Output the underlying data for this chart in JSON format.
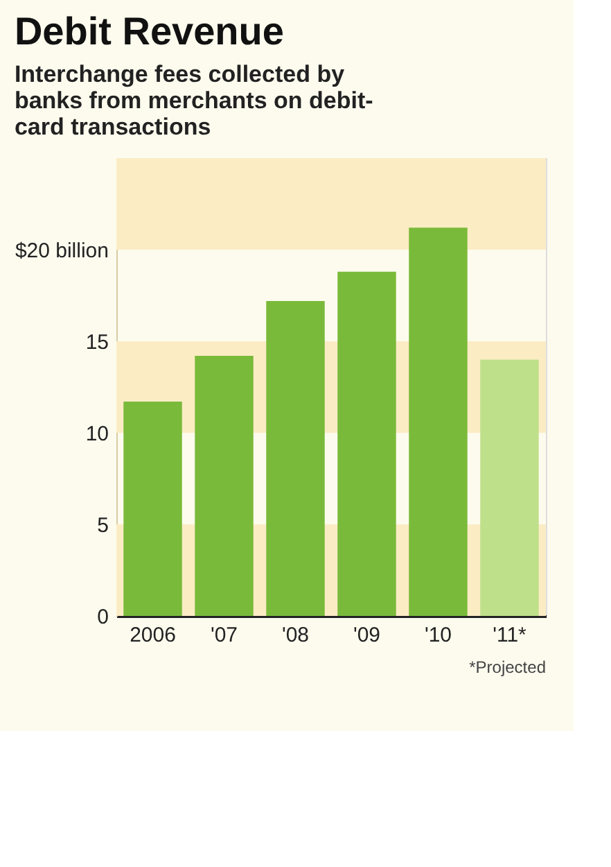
{
  "chart_data": {
    "type": "bar",
    "title": "Debit Revenue",
    "subtitle": "Interchange fees collected by banks from merchants on debit-card transactions",
    "categories": [
      "2006",
      "'07",
      "'08",
      "'09",
      "'10",
      "'11*"
    ],
    "values": [
      11.7,
      14.2,
      17.2,
      18.8,
      21.2,
      14.0
    ],
    "colors": [
      "#7aba3a",
      "#7aba3a",
      "#7aba3a",
      "#7aba3a",
      "#7aba3a",
      "#bfe08a"
    ],
    "ylim": [
      0,
      25
    ],
    "yticks": [
      0,
      5,
      10,
      15,
      {
        "value": 20,
        "label": "$20 billion"
      }
    ],
    "bands": [
      {
        "axis": "y",
        "from": 0,
        "to": 5,
        "color": "#fbecc4"
      },
      {
        "axis": "y",
        "from": 10,
        "to": 15,
        "color": "#fbecc4"
      },
      {
        "axis": "y",
        "from": 20,
        "to": 25,
        "color": "#fbecc4"
      }
    ],
    "grid": false,
    "annotations": [
      "*Projected"
    ]
  }
}
